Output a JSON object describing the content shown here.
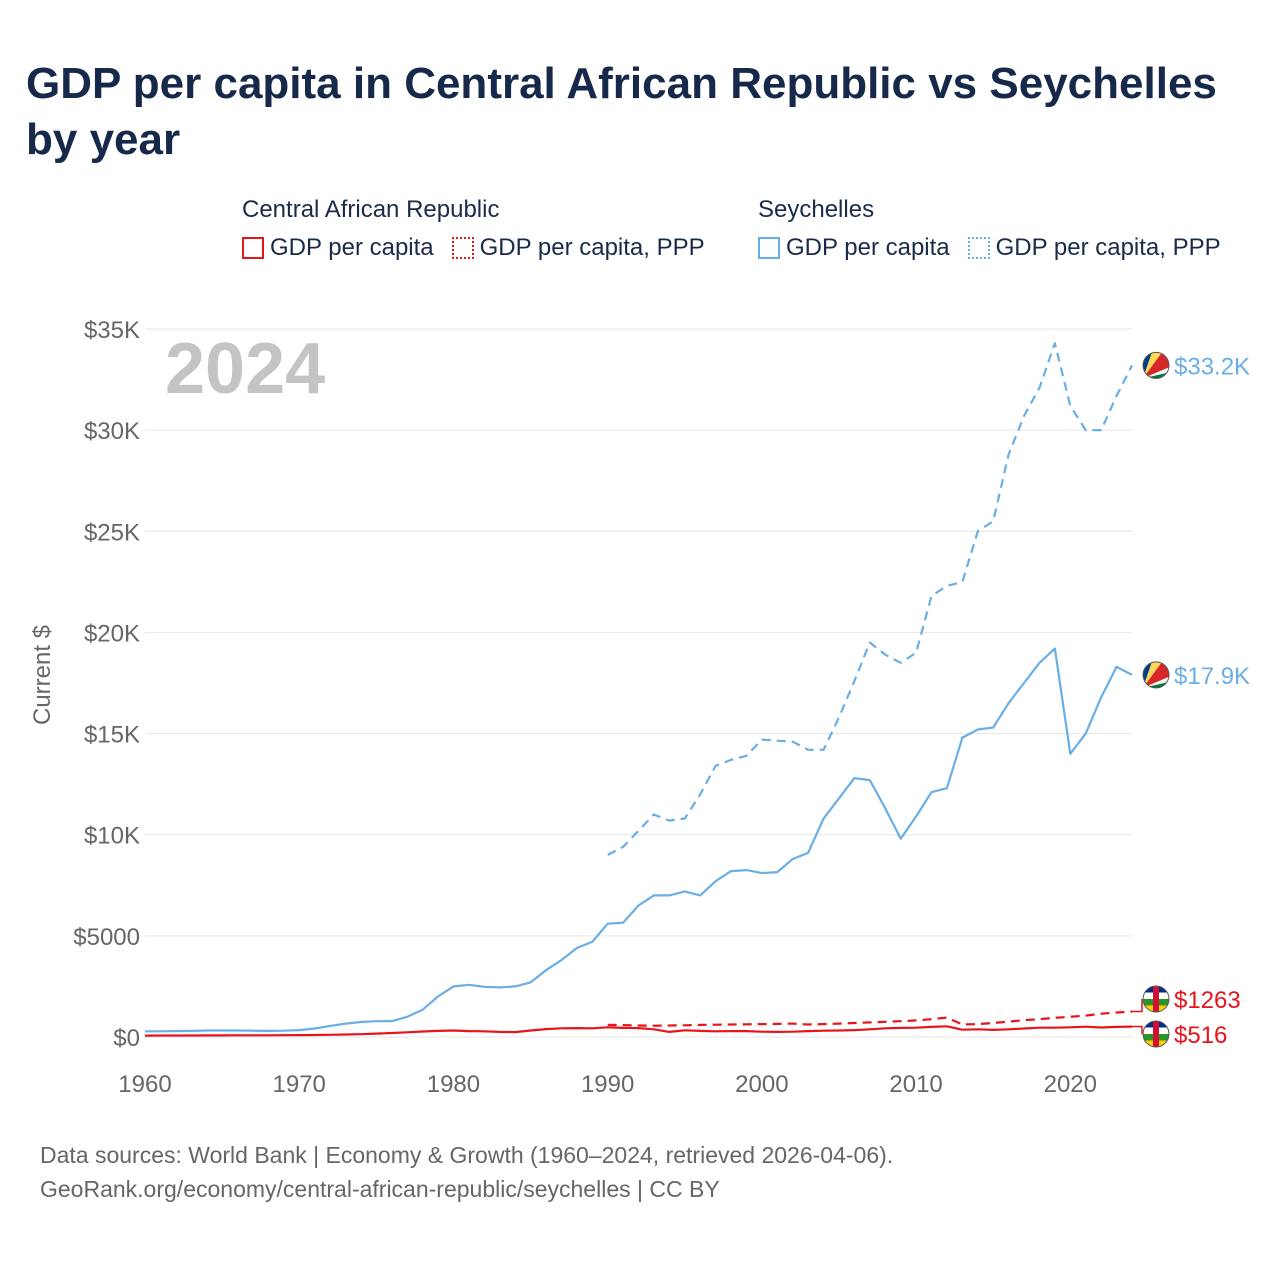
{
  "title": "GDP per capita in Central African Republic vs Seychelles by year",
  "legend": {
    "groups": [
      {
        "name": "Central African Republic",
        "color": "#e8141c",
        "items": [
          {
            "label": "GDP per capita",
            "style": "solid"
          },
          {
            "label": "GDP per capita, PPP",
            "style": "dotted"
          }
        ]
      },
      {
        "name": "Seychelles",
        "color": "#6aaee6",
        "items": [
          {
            "label": "GDP per capita",
            "style": "solid"
          },
          {
            "label": "GDP per capita, PPP",
            "style": "dotted"
          }
        ]
      }
    ]
  },
  "footer": {
    "line1": "Data sources: World Bank | Economy & Growth (1960–2024, retrieved 2026-04-06).",
    "line2": "GeoRank.org/economy/central-african-republic/seychelles | CC BY"
  },
  "chart_data": {
    "type": "line",
    "title": "GDP per capita in Central African Republic vs Seychelles by year",
    "year_label": "2024",
    "ylabel": "Current $",
    "xlabel": "",
    "xlim": [
      1960,
      2024
    ],
    "ylim": [
      0,
      35000
    ],
    "x_ticks": [
      1960,
      1970,
      1980,
      1990,
      2000,
      2010,
      2020
    ],
    "x_tick_labels": [
      "1960",
      "1970",
      "1980",
      "1990",
      "2000",
      "2010",
      "2020"
    ],
    "y_ticks": [
      0,
      5000,
      10000,
      15000,
      20000,
      25000,
      30000,
      35000
    ],
    "y_tick_labels": [
      "$0",
      "$5000",
      "$10K",
      "$15K",
      "$20K",
      "$25K",
      "$30K",
      "$35K"
    ],
    "grid": true,
    "series": [
      {
        "name": "Seychelles GDP per capita, PPP",
        "country": "Seychelles",
        "color": "#6aaee6",
        "dash": "dashed",
        "end_label": "$33.2K",
        "points": [
          [
            1990,
            9000
          ],
          [
            1991,
            9400
          ],
          [
            1992,
            10200
          ],
          [
            1993,
            11000
          ],
          [
            1994,
            10700
          ],
          [
            1995,
            10800
          ],
          [
            1996,
            12000
          ],
          [
            1997,
            13400
          ],
          [
            1998,
            13700
          ],
          [
            1999,
            13900
          ],
          [
            2000,
            14700
          ],
          [
            2001,
            14650
          ],
          [
            2002,
            14600
          ],
          [
            2003,
            14200
          ],
          [
            2004,
            14200
          ],
          [
            2005,
            15800
          ],
          [
            2006,
            17600
          ],
          [
            2007,
            19500
          ],
          [
            2008,
            18900
          ],
          [
            2009,
            18500
          ],
          [
            2010,
            19000
          ],
          [
            2011,
            21800
          ],
          [
            2012,
            22300
          ],
          [
            2013,
            22500
          ],
          [
            2014,
            25000
          ],
          [
            2015,
            25500
          ],
          [
            2016,
            28800
          ],
          [
            2017,
            30700
          ],
          [
            2018,
            32100
          ],
          [
            2019,
            34300
          ],
          [
            2020,
            31200
          ],
          [
            2021,
            30000
          ],
          [
            2022,
            30000
          ],
          [
            2023,
            31700
          ],
          [
            2024,
            33200
          ]
        ]
      },
      {
        "name": "Seychelles GDP per capita",
        "country": "Seychelles",
        "color": "#6aaee6",
        "dash": "solid",
        "end_label": "$17.9K",
        "points": [
          [
            1960,
            280
          ],
          [
            1961,
            280
          ],
          [
            1962,
            290
          ],
          [
            1963,
            300
          ],
          [
            1964,
            320
          ],
          [
            1965,
            320
          ],
          [
            1966,
            320
          ],
          [
            1967,
            310
          ],
          [
            1968,
            300
          ],
          [
            1969,
            310
          ],
          [
            1970,
            340
          ],
          [
            1971,
            420
          ],
          [
            1972,
            550
          ],
          [
            1973,
            660
          ],
          [
            1974,
            740
          ],
          [
            1975,
            780
          ],
          [
            1976,
            780
          ],
          [
            1977,
            1000
          ],
          [
            1978,
            1350
          ],
          [
            1979,
            2000
          ],
          [
            1980,
            2500
          ],
          [
            1981,
            2580
          ],
          [
            1982,
            2480
          ],
          [
            1983,
            2450
          ],
          [
            1984,
            2500
          ],
          [
            1985,
            2700
          ],
          [
            1986,
            3300
          ],
          [
            1987,
            3800
          ],
          [
            1988,
            4400
          ],
          [
            1989,
            4700
          ],
          [
            1990,
            5600
          ],
          [
            1991,
            5650
          ],
          [
            1992,
            6500
          ],
          [
            1993,
            7000
          ],
          [
            1994,
            7000
          ],
          [
            1995,
            7200
          ],
          [
            1996,
            7000
          ],
          [
            1997,
            7700
          ],
          [
            1998,
            8200
          ],
          [
            1999,
            8250
          ],
          [
            2000,
            8100
          ],
          [
            2001,
            8150
          ],
          [
            2002,
            8800
          ],
          [
            2003,
            9100
          ],
          [
            2004,
            10800
          ],
          [
            2005,
            11800
          ],
          [
            2006,
            12800
          ],
          [
            2007,
            12700
          ],
          [
            2008,
            11300
          ],
          [
            2009,
            9800
          ],
          [
            2010,
            10900
          ],
          [
            2011,
            12100
          ],
          [
            2012,
            12300
          ],
          [
            2013,
            14800
          ],
          [
            2014,
            15200
          ],
          [
            2015,
            15300
          ],
          [
            2016,
            16500
          ],
          [
            2017,
            17500
          ],
          [
            2018,
            18500
          ],
          [
            2019,
            19200
          ],
          [
            2020,
            14000
          ],
          [
            2021,
            15000
          ],
          [
            2022,
            16800
          ],
          [
            2023,
            18300
          ],
          [
            2024,
            17900
          ]
        ]
      },
      {
        "name": "Central African Republic GDP per capita, PPP",
        "country": "Central African Republic",
        "color": "#e8141c",
        "dash": "dashed",
        "end_label": "$1263",
        "points": [
          [
            1990,
            600
          ],
          [
            1991,
            590
          ],
          [
            1992,
            570
          ],
          [
            1993,
            560
          ],
          [
            1994,
            570
          ],
          [
            1995,
            580
          ],
          [
            1996,
            600
          ],
          [
            1997,
            610
          ],
          [
            1998,
            620
          ],
          [
            1999,
            630
          ],
          [
            2000,
            640
          ],
          [
            2001,
            650
          ],
          [
            2002,
            660
          ],
          [
            2003,
            620
          ],
          [
            2004,
            640
          ],
          [
            2005,
            660
          ],
          [
            2006,
            690
          ],
          [
            2007,
            720
          ],
          [
            2008,
            750
          ],
          [
            2009,
            780
          ],
          [
            2010,
            820
          ],
          [
            2011,
            880
          ],
          [
            2012,
            960
          ],
          [
            2013,
            620
          ],
          [
            2014,
            640
          ],
          [
            2015,
            690
          ],
          [
            2016,
            760
          ],
          [
            2017,
            830
          ],
          [
            2018,
            880
          ],
          [
            2019,
            950
          ],
          [
            2020,
            1000
          ],
          [
            2021,
            1060
          ],
          [
            2022,
            1150
          ],
          [
            2023,
            1210
          ],
          [
            2024,
            1263
          ]
        ]
      },
      {
        "name": "Central African Republic GDP per capita",
        "country": "Central African Republic",
        "color": "#e8141c",
        "dash": "solid",
        "end_label": "$516",
        "points": [
          [
            1960,
            70
          ],
          [
            1961,
            72
          ],
          [
            1962,
            75
          ],
          [
            1963,
            76
          ],
          [
            1964,
            78
          ],
          [
            1965,
            80
          ],
          [
            1966,
            82
          ],
          [
            1967,
            84
          ],
          [
            1968,
            86
          ],
          [
            1969,
            90
          ],
          [
            1970,
            95
          ],
          [
            1971,
            100
          ],
          [
            1972,
            110
          ],
          [
            1973,
            125
          ],
          [
            1974,
            140
          ],
          [
            1975,
            170
          ],
          [
            1976,
            200
          ],
          [
            1977,
            230
          ],
          [
            1978,
            270
          ],
          [
            1979,
            300
          ],
          [
            1980,
            320
          ],
          [
            1981,
            290
          ],
          [
            1982,
            280
          ],
          [
            1983,
            250
          ],
          [
            1984,
            240
          ],
          [
            1985,
            320
          ],
          [
            1986,
            390
          ],
          [
            1987,
            430
          ],
          [
            1988,
            440
          ],
          [
            1989,
            430
          ],
          [
            1990,
            480
          ],
          [
            1991,
            450
          ],
          [
            1992,
            440
          ],
          [
            1993,
            380
          ],
          [
            1994,
            250
          ],
          [
            1995,
            330
          ],
          [
            1996,
            300
          ],
          [
            1997,
            280
          ],
          [
            1998,
            290
          ],
          [
            1999,
            290
          ],
          [
            2000,
            260
          ],
          [
            2001,
            250
          ],
          [
            2002,
            260
          ],
          [
            2003,
            290
          ],
          [
            2004,
            310
          ],
          [
            2005,
            320
          ],
          [
            2006,
            340
          ],
          [
            2007,
            380
          ],
          [
            2008,
            430
          ],
          [
            2009,
            450
          ],
          [
            2010,
            460
          ],
          [
            2011,
            500
          ],
          [
            2012,
            530
          ],
          [
            2013,
            360
          ],
          [
            2014,
            380
          ],
          [
            2015,
            350
          ],
          [
            2016,
            380
          ],
          [
            2017,
            420
          ],
          [
            2018,
            460
          ],
          [
            2019,
            460
          ],
          [
            2020,
            480
          ],
          [
            2021,
            510
          ],
          [
            2022,
            470
          ],
          [
            2023,
            500
          ],
          [
            2024,
            516
          ]
        ]
      }
    ]
  }
}
